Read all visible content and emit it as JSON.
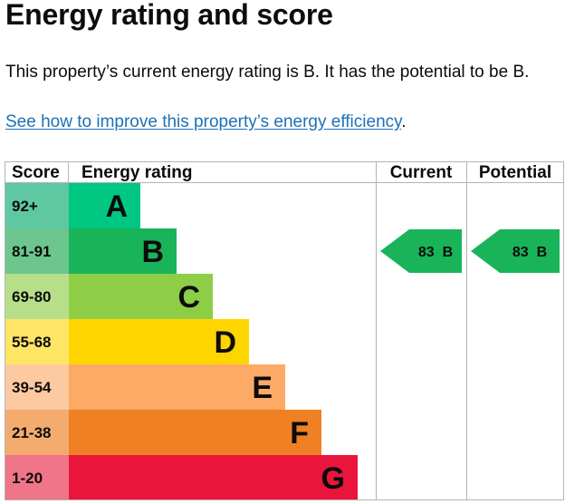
{
  "heading": "Energy rating and score",
  "summary": "This property’s current energy rating is B. It has the potential to be B.",
  "improve_link": "See how to improve this property’s energy efficiency",
  "improve_link_suffix": ".",
  "chart_data": {
    "type": "table",
    "headers": {
      "score": "Score",
      "rating": "Energy rating",
      "current": "Current",
      "potential": "Potential"
    },
    "bands": [
      {
        "score": "92+",
        "letter": "A",
        "bar_color": "#00c781",
        "score_color": "#5fc7a1"
      },
      {
        "score": "81-91",
        "letter": "B",
        "bar_color": "#19b459",
        "score_color": "#6cc68e"
      },
      {
        "score": "69-80",
        "letter": "C",
        "bar_color": "#8dce46",
        "score_color": "#b7df8a"
      },
      {
        "score": "55-68",
        "letter": "D",
        "bar_color": "#ffd500",
        "score_color": "#ffe566"
      },
      {
        "score": "39-54",
        "letter": "E",
        "bar_color": "#fcaa65",
        "score_color": "#fdc9a1"
      },
      {
        "score": "21-38",
        "letter": "F",
        "bar_color": "#ef8023",
        "score_color": "#f4ac6e"
      },
      {
        "score": "1-20",
        "letter": "G",
        "bar_color": "#e9153b",
        "score_color": "#f07588"
      }
    ],
    "current": {
      "score": 83,
      "band": "B",
      "label": "83  B"
    },
    "potential": {
      "score": 83,
      "band": "B",
      "label": "83  B"
    }
  }
}
